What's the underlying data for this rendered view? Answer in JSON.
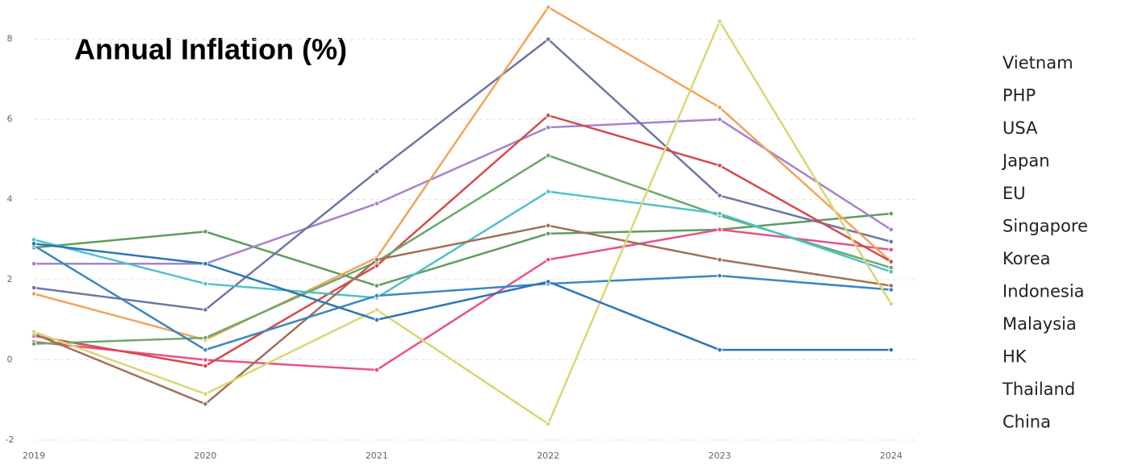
{
  "chart_data": {
    "type": "line",
    "title": "Annual Inflation (%)",
    "categories": [
      "2019",
      "2020",
      "2021",
      "2022",
      "2023",
      "2024"
    ],
    "ylim": [
      -2,
      9
    ],
    "yticks": [
      -2,
      0,
      2,
      4,
      6,
      8
    ],
    "grid": true,
    "series": [
      {
        "name": "Vietnam",
        "color": "#5c9e5c",
        "values": [
          2.8,
          3.2,
          1.85,
          3.15,
          3.25,
          3.65
        ]
      },
      {
        "name": "PHP",
        "color": "#a583cc",
        "values": [
          2.4,
          2.4,
          3.9,
          5.8,
          6.0,
          3.25
        ]
      },
      {
        "name": "USA",
        "color": "#6b77a3",
        "values": [
          1.8,
          1.25,
          4.7,
          8.0,
          4.1,
          2.95
        ]
      },
      {
        "name": "Japan",
        "color": "#e8508a",
        "values": [
          0.45,
          0.0,
          -0.25,
          2.5,
          3.25,
          2.75
        ]
      },
      {
        "name": "EU",
        "color": "#f2a35a",
        "values": [
          1.65,
          0.5,
          2.55,
          8.8,
          6.3,
          2.45
        ]
      },
      {
        "name": "Singapore",
        "color": "#d64a4a",
        "values": [
          0.6,
          -0.15,
          2.35,
          6.1,
          4.85,
          2.45
        ]
      },
      {
        "name": "Korea",
        "color": "#6aa86a",
        "values": [
          0.4,
          0.55,
          2.45,
          5.1,
          3.6,
          2.3
        ]
      },
      {
        "name": "Indonesia",
        "color": "#4fc1c9",
        "values": [
          3.0,
          1.9,
          1.55,
          4.2,
          3.65,
          2.2
        ]
      },
      {
        "name": "Malaysia",
        "color": "#a26f5a",
        "values": [
          0.65,
          -1.1,
          2.5,
          3.35,
          2.5,
          1.85
        ]
      },
      {
        "name": "HK",
        "color": "#3a86c0",
        "values": [
          2.85,
          0.25,
          1.6,
          1.9,
          2.1,
          1.75
        ]
      },
      {
        "name": "Thailand",
        "color": "#d9d772",
        "values": [
          0.7,
          -0.85,
          1.25,
          -1.6,
          8.45,
          1.4
        ]
      },
      {
        "name": "China",
        "color": "#2b76b5",
        "values": [
          2.9,
          2.4,
          1.0,
          1.95,
          0.25,
          0.25
        ]
      }
    ]
  }
}
